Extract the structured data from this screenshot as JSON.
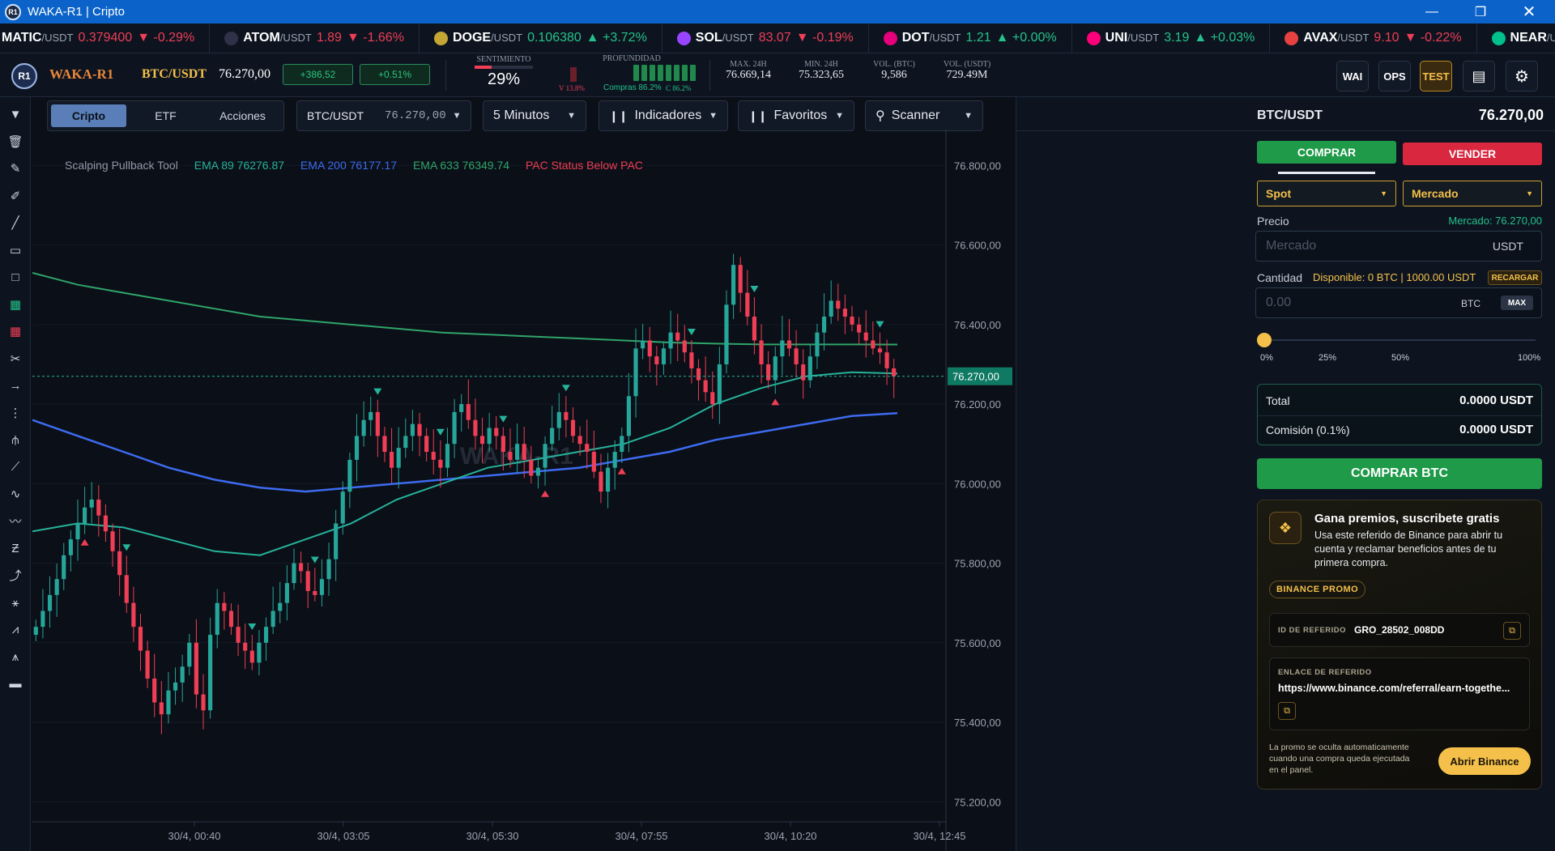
{
  "window": {
    "title": "WAKA-R1 | Cripto",
    "logo_text": "R1"
  },
  "ticker": [
    {
      "sym": "MATIC",
      "pair": "/USDT",
      "price": "0.379400",
      "chg": "▼ -0.29%",
      "dir": "dn",
      "color": "#8247e5"
    },
    {
      "sym": "ATOM",
      "pair": "/USDT",
      "price": "1.89",
      "chg": "▼ -1.66%",
      "dir": "dn",
      "color": "#2e3148"
    },
    {
      "sym": "DOGE",
      "pair": "/USDT",
      "price": "0.106380",
      "chg": "▲ +3.72%",
      "dir": "up",
      "color": "#c3a634"
    },
    {
      "sym": "SOL",
      "pair": "/USDT",
      "price": "83.07",
      "chg": "▼ -0.19%",
      "dir": "dn",
      "color": "#9945ff"
    },
    {
      "sym": "DOT",
      "pair": "/USDT",
      "price": "1.21",
      "chg": "▲ +0.00%",
      "dir": "up",
      "color": "#e6007a"
    },
    {
      "sym": "UNI",
      "pair": "/USDT",
      "price": "3.19",
      "chg": "▲ +0.03%",
      "dir": "up",
      "color": "#ff007a"
    },
    {
      "sym": "AVAX",
      "pair": "/USDT",
      "price": "9.10",
      "chg": "▼ -0.22%",
      "dir": "dn",
      "color": "#e84142"
    },
    {
      "sym": "NEAR",
      "pair": "/U",
      "price": "",
      "chg": "",
      "dir": "up",
      "color": "#00c08b"
    }
  ],
  "header": {
    "brand": "WAKA-R1",
    "pair": "BTC/USDT",
    "price": "76.270,00",
    "chg_abs": "+386,52",
    "chg_pct": "+0.51%",
    "sentiment_label": "SENTIMIENTO",
    "sentiment_value": "29%",
    "sentiment_fraction": 0.29,
    "depth_label": "PROFUNDIDAD",
    "depth_sell": "V 13.8%",
    "depth_buy": "Compras 86.2%",
    "depth_buy2": "C 86.2%",
    "max_label": "MAX. 24H",
    "max_value": "76.669,14",
    "min_label": "MIN. 24H",
    "min_value": "75.323,65",
    "vol_btc_label": "VOL. (BTC)",
    "vol_btc_value": "9,586",
    "vol_usdt_label": "VOL. (USDT)",
    "vol_usdt_value": "729.49M",
    "btn_wai": "WAI",
    "btn_ops": "OPS",
    "btn_test": "TEST"
  },
  "toolbar": {
    "tabs": [
      "Cripto",
      "ETF",
      "Acciones"
    ],
    "symbol": "BTC/USDT",
    "symbol_price": "76.270,00",
    "interval": "5 Minutos",
    "indicators": "Indicadores",
    "favorites": "Favoritos",
    "scanner": "Scanner"
  },
  "legend": {
    "tool": "Scalping Pullback Tool",
    "ema89": "EMA 89 76276.87",
    "ema200": "EMA 200 76177.17",
    "ema633": "EMA 633 76349.74",
    "pac": "PAC Status Below PAC"
  },
  "chart_data": {
    "type": "candlestick",
    "watermark": "WAKA-R1",
    "y_ticks": [
      76800,
      76600,
      76400,
      76200,
      76000,
      75800,
      75600,
      75400,
      75200
    ],
    "y_tick_labels": [
      "76.800,00",
      "76.600,00",
      "76.400,00",
      "76.200,00",
      "76.000,00",
      "75.800,00",
      "75.600,00",
      "75.400,00",
      "75.200,00"
    ],
    "ylim": [
      75170,
      76870
    ],
    "x_tick_labels": [
      "30/4, 00:40",
      "30/4, 03:05",
      "30/4, 05:30",
      "30/4, 07:55",
      "30/4, 10:20",
      "30/4, 12:45"
    ],
    "current_price": 76270,
    "current_price_label": "76.270,00",
    "closes": [
      75640,
      75680,
      75720,
      75760,
      75820,
      75860,
      75900,
      75940,
      75960,
      75920,
      75880,
      75830,
      75770,
      75700,
      75640,
      75580,
      75510,
      75450,
      75420,
      75480,
      75500,
      75540,
      75600,
      75470,
      75430,
      75620,
      75700,
      75680,
      75640,
      75600,
      75580,
      75550,
      75600,
      75640,
      75680,
      75700,
      75750,
      75800,
      75780,
      75730,
      75720,
      75760,
      75810,
      75900,
      75980,
      76060,
      76120,
      76160,
      76180,
      76120,
      76080,
      76040,
      76090,
      76120,
      76150,
      76120,
      76080,
      76060,
      76040,
      76100,
      76180,
      76200,
      76160,
      76120,
      76100,
      76140,
      76120,
      76080,
      76060,
      76100,
      76060,
      76020,
      76040,
      76100,
      76140,
      76180,
      76160,
      76120,
      76100,
      76080,
      76030,
      75980,
      76040,
      76080,
      76120,
      76220,
      76340,
      76360,
      76320,
      76300,
      76340,
      76380,
      76360,
      76330,
      76290,
      76260,
      76230,
      76200,
      76300,
      76450,
      76550,
      76480,
      76420,
      76360,
      76300,
      76260,
      76320,
      76360,
      76340,
      76300,
      76260,
      76320,
      76380,
      76420,
      76460,
      76440,
      76420,
      76400,
      76380,
      76360,
      76340,
      76330,
      76290,
      76270
    ],
    "ema89": [
      75880,
      75900,
      75890,
      75860,
      75830,
      75820,
      75860,
      75900,
      75960,
      76000,
      76040,
      76060,
      76080,
      76100,
      76140,
      76200,
      76240,
      76270,
      76280,
      76276.87
    ],
    "ema200": [
      76160,
      76120,
      76080,
      76040,
      76010,
      75990,
      75980,
      75990,
      76000,
      76010,
      76020,
      76030,
      76040,
      76060,
      76080,
      76110,
      76130,
      76150,
      76170,
      76177.17
    ],
    "ema633": [
      76530,
      76500,
      76480,
      76460,
      76440,
      76420,
      76410,
      76400,
      76390,
      76380,
      76375,
      76370,
      76365,
      76360,
      76355,
      76352,
      76350,
      76350,
      76350,
      76349.74
    ]
  },
  "panel": {
    "pair": "BTC/USDT",
    "price": "76.270,00",
    "buy": "COMPRAR",
    "sell": "VENDER",
    "mode": "Spot",
    "order_type": "Mercado",
    "price_label": "Precio",
    "market_label": "Mercado: 76.270,00",
    "price_placeholder": "Mercado",
    "price_unit": "USDT",
    "qty_label": "Cantidad",
    "available": "Disponible: 0 BTC | 1000.00 USDT",
    "recharge": "RECARGAR",
    "qty_placeholder": "0.00",
    "qty_unit": "BTC",
    "max": "MAX",
    "slider_marks": [
      "0%",
      "25%",
      "50%",
      "100%"
    ],
    "slider_fraction": 0,
    "total_label": "Total",
    "total_value": "0.0000 USDT",
    "fee_label": "Comisión (0.1%)",
    "fee_value": "0.0000 USDT",
    "submit": "COMPRAR BTC",
    "promo": {
      "title": "Gana premios, suscribete gratis",
      "desc": "Usa este referido de Binance para abrir tu cuenta y reclamar beneficios antes de tu primera compra.",
      "tag": "BINANCE PROMO",
      "ref_id_label": "ID DE REFERIDO",
      "ref_id": "GRO_28502_008DD",
      "ref_link_label": "ENLACE DE REFERIDO",
      "ref_link": "https://www.binance.com/referral/earn-togethe...",
      "note": "La promo se oculta automaticamente cuando una compra queda ejecutada en el panel.",
      "open": "Abrir Binance"
    }
  }
}
